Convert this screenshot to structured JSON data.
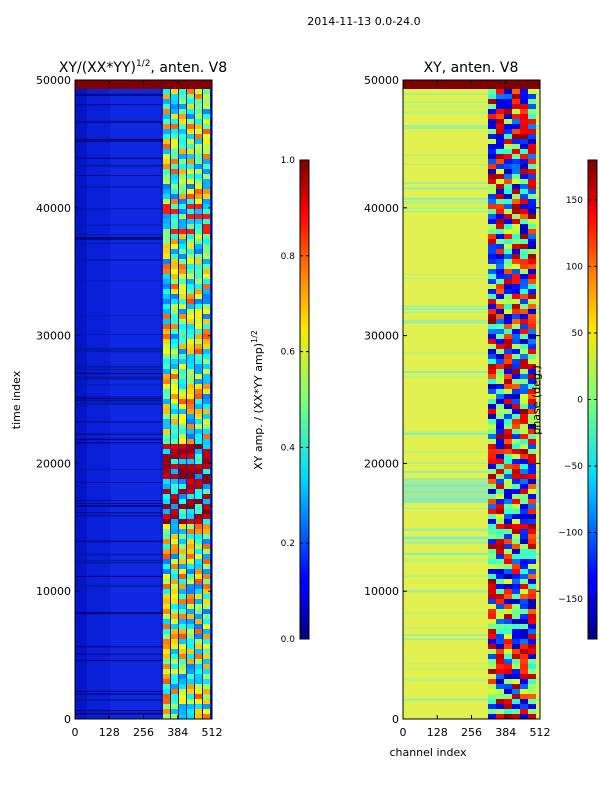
{
  "figure": {
    "suptitle": "2014-11-13 0.0-24.0"
  },
  "chart_data": [
    {
      "type": "heatmap",
      "title_main": "XY/(XX*YY)",
      "title_exp": "1/2",
      "title_rest": ", anten. V8",
      "xlabel": "",
      "ylabel": "time index",
      "xlim": [
        0,
        512
      ],
      "ylim": [
        0,
        50000
      ],
      "xticks": [
        0,
        128,
        256,
        384,
        512
      ],
      "yticks": [
        0,
        10000,
        20000,
        30000,
        40000,
        50000
      ],
      "colormap": "jet",
      "colorbar": {
        "label_main": "XY amp. / (XX*YY amp)",
        "label_exp": "1/2",
        "range": [
          0.0,
          1.0
        ],
        "ticks": [
          "0.0",
          "0.2",
          "0.4",
          "0.6",
          "0.8",
          "1.0"
        ]
      }
    },
    {
      "type": "heatmap",
      "title": "XY, anten. V8",
      "xlabel": "channel index",
      "ylabel": "",
      "xlim": [
        0,
        512
      ],
      "ylim": [
        0,
        50000
      ],
      "xticks": [
        0,
        128,
        256,
        384,
        512
      ],
      "yticks": [
        0,
        10000,
        20000,
        30000,
        40000,
        50000
      ],
      "colormap": "jet",
      "colorbar": {
        "label": "phase (deg.)",
        "range": [
          -180,
          180
        ],
        "ticks": [
          "−150",
          "−100",
          "−50",
          "0",
          "50",
          "100",
          "150"
        ]
      }
    }
  ]
}
